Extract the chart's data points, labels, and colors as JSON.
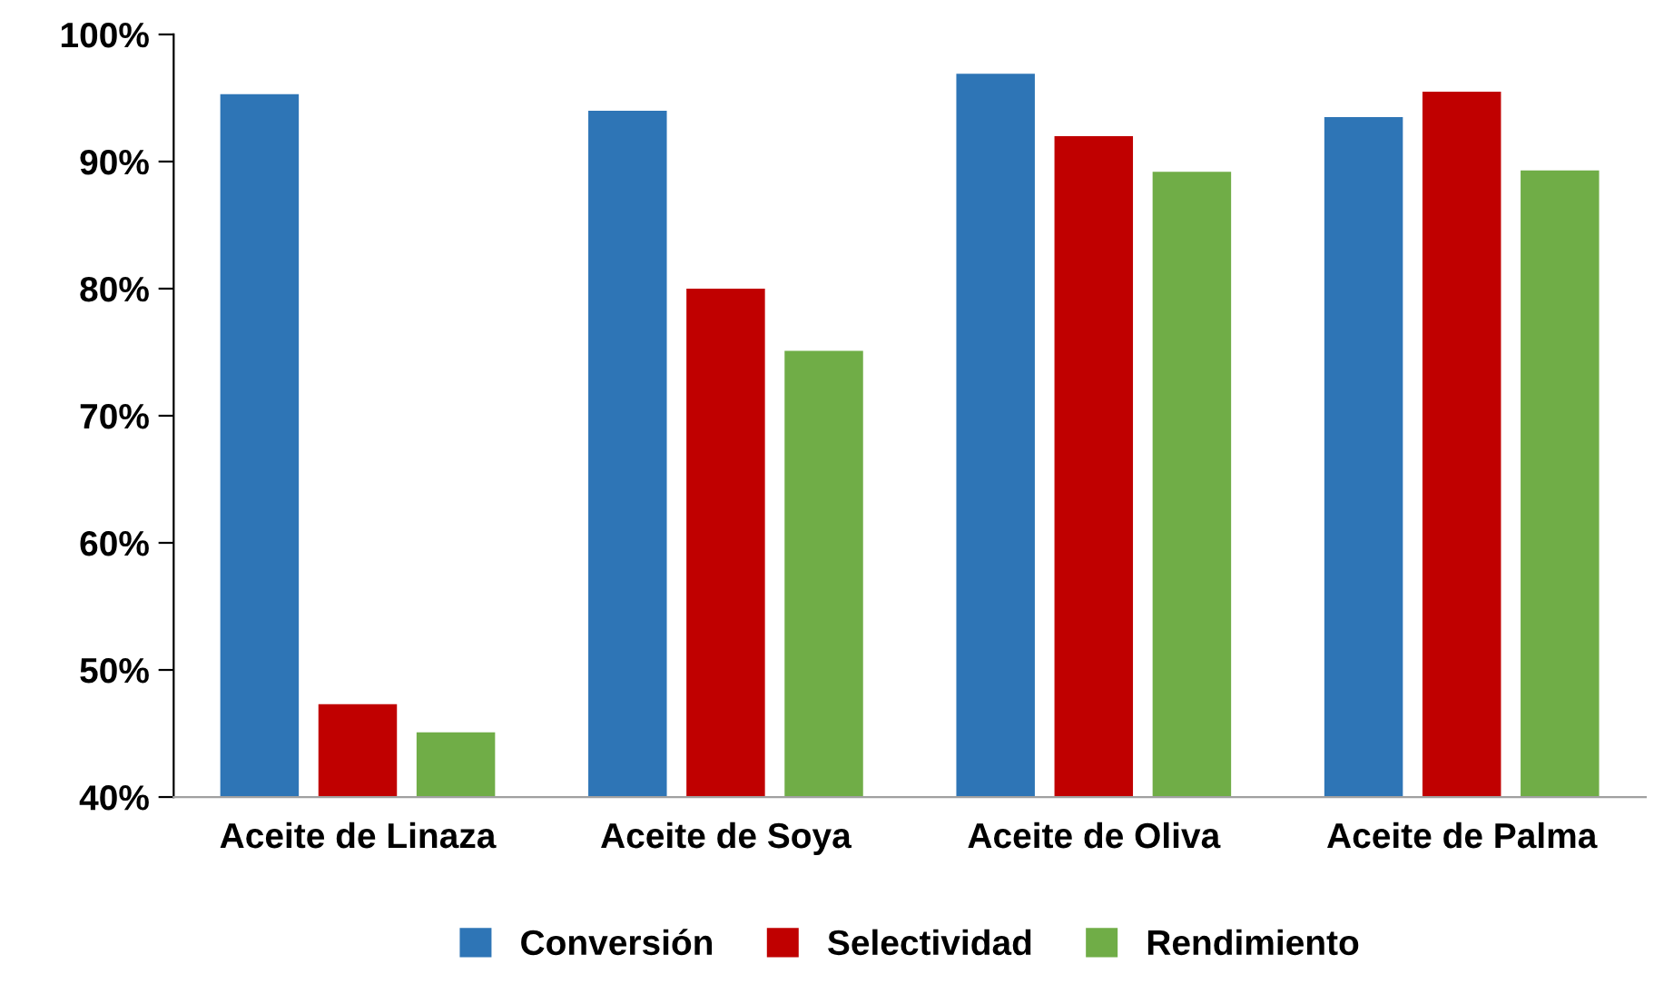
{
  "chart_data": {
    "type": "bar",
    "categories": [
      "Aceite de Linaza",
      "Aceite de Soya",
      "Aceite de Oliva",
      "Aceite de Palma"
    ],
    "series": [
      {
        "name": "Conversión",
        "color": "#2e75b6",
        "values": [
          95.3,
          94.0,
          96.9,
          93.5
        ]
      },
      {
        "name": "Selectividad",
        "color": "#c00000",
        "values": [
          47.3,
          80.0,
          92.0,
          95.5
        ]
      },
      {
        "name": "Rendimiento",
        "color": "#70ad47",
        "values": [
          45.1,
          75.1,
          89.2,
          89.3
        ]
      }
    ],
    "ylim": [
      40,
      100
    ],
    "yticks": [
      {
        "value": 40,
        "label": "40%"
      },
      {
        "value": 50,
        "label": "50%"
      },
      {
        "value": 60,
        "label": "60%"
      },
      {
        "value": 70,
        "label": "70%"
      },
      {
        "value": 80,
        "label": "80%"
      },
      {
        "value": 90,
        "label": "90%"
      },
      {
        "value": 100,
        "label": "100%"
      }
    ],
    "grid": false,
    "legend": "bottom"
  }
}
